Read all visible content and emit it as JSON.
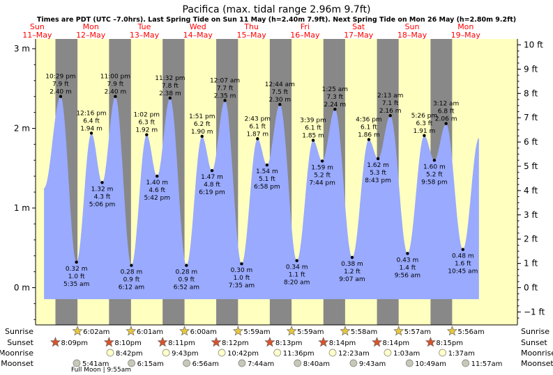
{
  "title": "Pacifica (max. tidal range 2.96m 9.7ft)",
  "subtitle": "Times are PDT (UTC –7.0hrs). Last Spring Tide on Sun 11 May (h=2.40m 7.9ft). Next Spring Tide on Mon 26 May (h=2.80m 9.2ft)",
  "colors": {
    "day": "#ffffc0",
    "night": "#888888",
    "tide": "#99aaff",
    "weekday": "#ff0000"
  },
  "days": [
    {
      "dow": "Sun",
      "date": "11–May"
    },
    {
      "dow": "Mon",
      "date": "12–May"
    },
    {
      "dow": "Tue",
      "date": "13–May"
    },
    {
      "dow": "Wed",
      "date": "14–May"
    },
    {
      "dow": "Thu",
      "date": "15–May"
    },
    {
      "dow": "Fri",
      "date": "16–May"
    },
    {
      "dow": "Sat",
      "date": "17–May"
    },
    {
      "dow": "Sun",
      "date": "18–May"
    },
    {
      "dow": "Mon",
      "date": "19–May"
    }
  ],
  "axes": {
    "left_ticks": [
      "3 m",
      "2 m",
      "1 m",
      "0 m"
    ],
    "right_ticks": [
      "10 ft",
      "9 ft",
      "8 ft",
      "7 ft",
      "6 ft",
      "5 ft",
      "4 ft",
      "3 ft",
      "2 ft",
      "1 ft",
      "0 ft",
      "−1 ft"
    ]
  },
  "chart_data": {
    "type": "area",
    "title": "Pacifica (max. tidal range 2.96m 9.7ft)",
    "ylabel_left": "m",
    "ylabel_right": "ft",
    "ylim_m": [
      -0.42,
      3.1
    ],
    "ylim_ft": [
      -1.4,
      10.1
    ],
    "x_unit": "days from 11 May 00:00 PDT",
    "grid": false,
    "extremes": [
      {
        "time": "10:29 pm",
        "day": "11–May",
        "m": 2.4,
        "ft": 7.9,
        "label_m": "2.40 m",
        "label_ft": "7.9 ft",
        "type": "high"
      },
      {
        "time": "5:35 am",
        "day": "12–May",
        "m": 0.32,
        "ft": 1.0,
        "label_m": "0.32 m",
        "label_ft": "1.0 ft",
        "type": "low"
      },
      {
        "time": "12:16 pm",
        "day": "12–May",
        "m": 1.94,
        "ft": 6.4,
        "label_m": "1.94 m",
        "label_ft": "6.4 ft",
        "type": "high"
      },
      {
        "time": "5:06 pm",
        "day": "12–May",
        "m": 1.32,
        "ft": 4.3,
        "label_m": "1.32 m",
        "label_ft": "4.3 ft",
        "type": "low"
      },
      {
        "time": "11:00 pm",
        "day": "12–May",
        "m": 2.4,
        "ft": 7.9,
        "label_m": "2.40 m",
        "label_ft": "7.9 ft",
        "type": "high"
      },
      {
        "time": "6:12 am",
        "day": "13–May",
        "m": 0.28,
        "ft": 0.9,
        "label_m": "0.28 m",
        "label_ft": "0.9 ft",
        "type": "low"
      },
      {
        "time": "1:02 pm",
        "day": "13–May",
        "m": 1.92,
        "ft": 6.3,
        "label_m": "1.92 m",
        "label_ft": "6.3 ft",
        "type": "high"
      },
      {
        "time": "5:42 pm",
        "day": "13–May",
        "m": 1.4,
        "ft": 4.6,
        "label_m": "1.40 m",
        "label_ft": "4.6 ft",
        "type": "low"
      },
      {
        "time": "11:32 pm",
        "day": "13–May",
        "m": 2.38,
        "ft": 7.8,
        "label_m": "2.38 m",
        "label_ft": "7.8 ft",
        "type": "high"
      },
      {
        "time": "6:52 am",
        "day": "14–May",
        "m": 0.28,
        "ft": 0.9,
        "label_m": "0.28 m",
        "label_ft": "0.9 ft",
        "type": "low"
      },
      {
        "time": "1:51 pm",
        "day": "14–May",
        "m": 1.9,
        "ft": 6.2,
        "label_m": "1.90 m",
        "label_ft": "6.2 ft",
        "type": "high"
      },
      {
        "time": "6:19 pm",
        "day": "14–May",
        "m": 1.47,
        "ft": 4.8,
        "label_m": "1.47 m",
        "label_ft": "4.8 ft",
        "type": "low"
      },
      {
        "time": "12:07 am",
        "day": "15–May",
        "m": 2.35,
        "ft": 7.7,
        "label_m": "2.35 m",
        "label_ft": "7.7 ft",
        "type": "high"
      },
      {
        "time": "7:35 am",
        "day": "15–May",
        "m": 0.3,
        "ft": 1.0,
        "label_m": "0.30 m",
        "label_ft": "1.0 ft",
        "type": "low"
      },
      {
        "time": "2:43 pm",
        "day": "15–May",
        "m": 1.87,
        "ft": 6.1,
        "label_m": "1.87 m",
        "label_ft": "6.1 ft",
        "type": "high"
      },
      {
        "time": "6:58 pm",
        "day": "15–May",
        "m": 1.54,
        "ft": 5.1,
        "label_m": "1.54 m",
        "label_ft": "5.1 ft",
        "type": "low"
      },
      {
        "time": "12:44 am",
        "day": "16–May",
        "m": 2.3,
        "ft": 7.5,
        "label_m": "2.30 m",
        "label_ft": "7.5 ft",
        "type": "high"
      },
      {
        "time": "8:20 am",
        "day": "16–May",
        "m": 0.34,
        "ft": 1.1,
        "label_m": "0.34 m",
        "label_ft": "1.1 ft",
        "type": "low"
      },
      {
        "time": "3:39 pm",
        "day": "16–May",
        "m": 1.85,
        "ft": 6.1,
        "label_m": "1.85 m",
        "label_ft": "6.1 ft",
        "type": "high"
      },
      {
        "time": "7:44 pm",
        "day": "16–May",
        "m": 1.59,
        "ft": 5.2,
        "label_m": "1.59 m",
        "label_ft": "5.2 ft",
        "type": "low"
      },
      {
        "time": "1:25 am",
        "day": "17–May",
        "m": 2.24,
        "ft": 7.3,
        "label_m": "2.24 m",
        "label_ft": "7.3 ft",
        "type": "high"
      },
      {
        "time": "9:07 am",
        "day": "17–May",
        "m": 0.38,
        "ft": 1.2,
        "label_m": "0.38 m",
        "label_ft": "1.2 ft",
        "type": "low"
      },
      {
        "time": "4:36 pm",
        "day": "17–May",
        "m": 1.86,
        "ft": 6.1,
        "label_m": "1.86 m",
        "label_ft": "6.1 ft",
        "type": "high"
      },
      {
        "time": "8:43 pm",
        "day": "17–May",
        "m": 1.62,
        "ft": 5.3,
        "label_m": "1.62 m",
        "label_ft": "5.3 ft",
        "type": "low"
      },
      {
        "time": "2:13 am",
        "day": "18–May",
        "m": 2.16,
        "ft": 7.1,
        "label_m": "2.16 m",
        "label_ft": "7.1 ft",
        "type": "high"
      },
      {
        "time": "9:56 am",
        "day": "18–May",
        "m": 0.43,
        "ft": 1.4,
        "label_m": "0.43 m",
        "label_ft": "1.4 ft",
        "type": "low"
      },
      {
        "time": "5:26 pm",
        "day": "18–May",
        "m": 1.91,
        "ft": 6.3,
        "label_m": "1.91 m",
        "label_ft": "6.3 ft",
        "type": "high"
      },
      {
        "time": "9:58 pm",
        "day": "18–May",
        "m": 1.6,
        "ft": 5.2,
        "label_m": "1.60 m",
        "label_ft": "5.2 ft",
        "type": "low"
      },
      {
        "time": "3:12 am",
        "day": "19–May",
        "m": 2.06,
        "ft": 6.8,
        "label_m": "2.06 m",
        "label_ft": "6.8 ft",
        "type": "high"
      },
      {
        "time": "10:45 am",
        "day": "19–May",
        "m": 0.48,
        "ft": 1.6,
        "label_m": "0.48 m",
        "label_ft": "1.6 ft",
        "type": "low"
      }
    ]
  },
  "events": {
    "row_labels": [
      "Sunrise",
      "Sunset",
      "Moonrise",
      "Moonset"
    ],
    "sunrise": [
      {
        "day": "12–May",
        "time": "6:02am"
      },
      {
        "day": "13–May",
        "time": "6:01am"
      },
      {
        "day": "14–May",
        "time": "6:00am"
      },
      {
        "day": "15–May",
        "time": "5:59am"
      },
      {
        "day": "16–May",
        "time": "5:59am"
      },
      {
        "day": "17–May",
        "time": "5:58am"
      },
      {
        "day": "18–May",
        "time": "5:57am"
      },
      {
        "day": "19–May",
        "time": "5:56am"
      }
    ],
    "sunset": [
      {
        "day": "11–May",
        "time": "8:09pm"
      },
      {
        "day": "12–May",
        "time": "8:10pm"
      },
      {
        "day": "13–May",
        "time": "8:11pm"
      },
      {
        "day": "14–May",
        "time": "8:12pm"
      },
      {
        "day": "15–May",
        "time": "8:13pm"
      },
      {
        "day": "16–May",
        "time": "8:14pm"
      },
      {
        "day": "17–May",
        "time": "8:14pm"
      },
      {
        "day": "18–May",
        "time": "8:15pm"
      }
    ],
    "moonrise": [
      {
        "day": "12–May",
        "time": "8:42pm"
      },
      {
        "day": "13–May",
        "time": "9:43pm"
      },
      {
        "day": "14–May",
        "time": "10:42pm"
      },
      {
        "day": "15–May",
        "time": "11:36pm"
      },
      {
        "day": "17–May",
        "time": "12:23am"
      },
      {
        "day": "18–May",
        "time": "1:03am"
      },
      {
        "day": "19–May",
        "time": "1:37am"
      }
    ],
    "moonset": [
      {
        "day": "12–May",
        "time": "5:41am"
      },
      {
        "day": "13–May",
        "time": "6:15am"
      },
      {
        "day": "14–May",
        "time": "6:56am"
      },
      {
        "day": "15–May",
        "time": "7:44am"
      },
      {
        "day": "16–May",
        "time": "8:40am"
      },
      {
        "day": "17–May",
        "time": "9:43am"
      },
      {
        "day": "18–May",
        "time": "10:49am"
      },
      {
        "day": "19–May",
        "time": "11:57am"
      }
    ],
    "moon_phase": "Full Moon | 9:55am"
  }
}
